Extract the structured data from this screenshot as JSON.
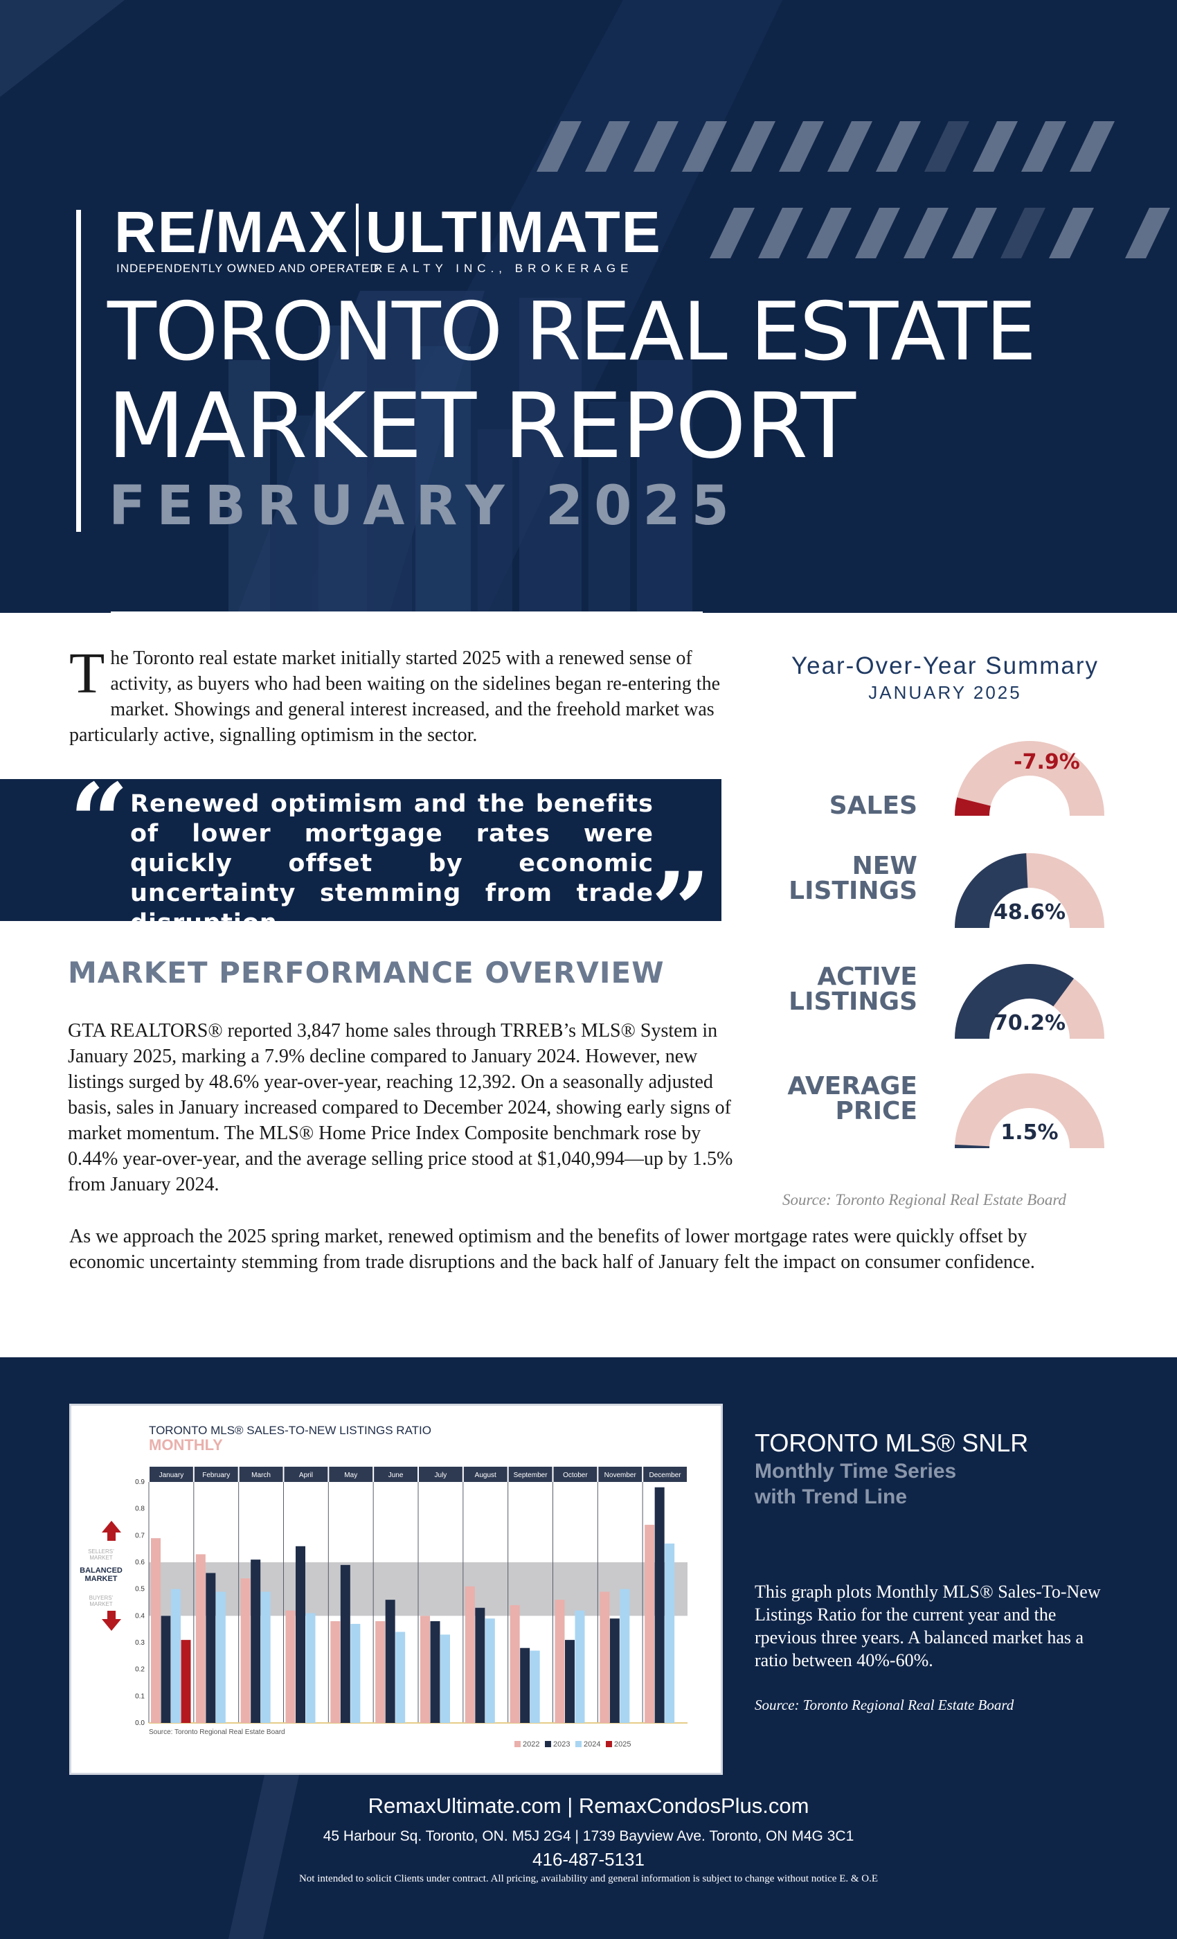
{
  "header": {
    "logo_left": "RE/MAX",
    "logo_right": "ULTIMATE",
    "logo_tag_left": "INDEPENDENTLY OWNED AND OPERATED",
    "logo_tag_right": "REALTY INC., BROKERAGE",
    "title_line1": "TORONTO REAL ESTATE",
    "title_line2": "MARKET REPORT",
    "title_line3": "FEBRUARY 2025"
  },
  "intro": {
    "dropcap": "T",
    "text": "he Toronto real estate market initially started 2025 with a renewed sense of activity, as buyers who had been waiting on the sidelines began re-entering the market. Showings and general interest increased, and the freehold market was particularly active, signalling optimism in the sector."
  },
  "quote": {
    "open": "“",
    "close": "”",
    "text": "Renewed optimism and the benefits of lower mortgage rates were quickly offset by economic uncertainty stemming from trade disruption"
  },
  "market": {
    "heading": "MARKET PERFORMANCE OVERVIEW",
    "para1": "GTA REALTORS® reported 3,847 home sales through TRREB’s MLS® System in January 2025, marking a 7.9% decline compared to January 2024. However, new listings surged by 48.6% year-over-year, reaching 12,392. On a seasonally adjusted basis, sales in January increased compared to December 2024, showing early signs of market momentum. The MLS® Home Price Index Composite benchmark rose by 0.44% year-over-year, and the average selling price stood at $1,040,994—up by 1.5% from January 2024.",
    "para2": "As we approach the 2025 spring market, renewed optimism and the benefits of lower mortgage rates were quickly offset by economic uncertainty stemming from trade disruptions and the back half of January felt the impact on consumer confidence."
  },
  "yoy": {
    "title": "Year-Over-Year Summary",
    "subtitle": "JANUARY 2025",
    "source": "Source: Toronto Regional Real Estate Board",
    "gauges": [
      {
        "label1": "SALES",
        "label2": "",
        "value_text": "-7.9%",
        "fraction": 0.079,
        "negative": true
      },
      {
        "label1": "NEW",
        "label2": "LISTINGS",
        "value_text": "48.6%",
        "fraction": 0.486,
        "negative": false
      },
      {
        "label1": "ACTIVE",
        "label2": "LISTINGS",
        "value_text": "70.2%",
        "fraction": 0.702,
        "negative": false
      },
      {
        "label1": "AVERAGE",
        "label2": "PRICE",
        "value_text": "1.5%",
        "fraction": 0.015,
        "negative": false
      }
    ],
    "colors": {
      "track": "#ebc8c2",
      "fill": "#2a3c5c",
      "negative": "#a8151f"
    }
  },
  "chart_data": {
    "type": "bar",
    "title": "TORONTO MLS® SALES-TO-NEW LISTINGS RATIO",
    "subtitle": "MONTHLY",
    "categories": [
      "January",
      "February",
      "March",
      "April",
      "May",
      "June",
      "July",
      "August",
      "September",
      "October",
      "November",
      "December"
    ],
    "series": [
      {
        "name": "2022",
        "color": "#e9b0ac",
        "values": [
          0.69,
          0.63,
          0.54,
          0.42,
          0.38,
          0.38,
          0.4,
          0.51,
          0.44,
          0.46,
          0.49,
          0.74
        ]
      },
      {
        "name": "2023",
        "color": "#1f2d48",
        "values": [
          0.4,
          0.56,
          0.61,
          0.66,
          0.59,
          0.46,
          0.38,
          0.43,
          0.28,
          0.31,
          0.39,
          0.88
        ]
      },
      {
        "name": "2024",
        "color": "#a9d5f2",
        "values": [
          0.5,
          0.49,
          0.49,
          0.41,
          0.37,
          0.34,
          0.33,
          0.39,
          0.27,
          0.42,
          0.5,
          0.67
        ]
      },
      {
        "name": "2025",
        "color": "#b3191f",
        "values": [
          0.31,
          null,
          null,
          null,
          null,
          null,
          null,
          null,
          null,
          null,
          null,
          null
        ]
      }
    ],
    "yticks": [
      "0.0",
      "0.1",
      "0.2",
      "0.3",
      "0.4",
      "0.5",
      "0.6",
      "0.7",
      "0.8",
      "0.9"
    ],
    "ylim": [
      0,
      0.9
    ],
    "balanced_band": [
      0.4,
      0.6
    ],
    "zone_labels": {
      "sellers": "SELLERS’ MARKET",
      "balanced": "BALANCED MARKET",
      "buyers": "BUYERS’ MARKET"
    },
    "source": "Source: Toronto Regional Real Estate Board",
    "legend_placement": "bottom-right"
  },
  "snlr": {
    "title": "TORONTO MLS® SNLR",
    "sub1": "Monthly Time Series",
    "sub2": "with Trend Line",
    "desc": "This graph plots Monthly MLS® Sales-To-New Listings Ratio for the current year and the rpevious three years. A balanced market has a ratio between 40%-60%.",
    "source": "Source: Toronto Regional Real Estate Board"
  },
  "footer": {
    "websites": "RemaxUltimate.com | RemaxCondosPlus.com",
    "address": "45 Harbour Sq. Toronto, ON. M5J 2G4 | 1739 Bayview Ave. Toronto, ON M4G 3C1",
    "phone": "416-487-5131",
    "disclaimer": "Not intended to solicit Clients under contract. All pricing, availability and general information is subject to change without notice E. & O.E"
  }
}
